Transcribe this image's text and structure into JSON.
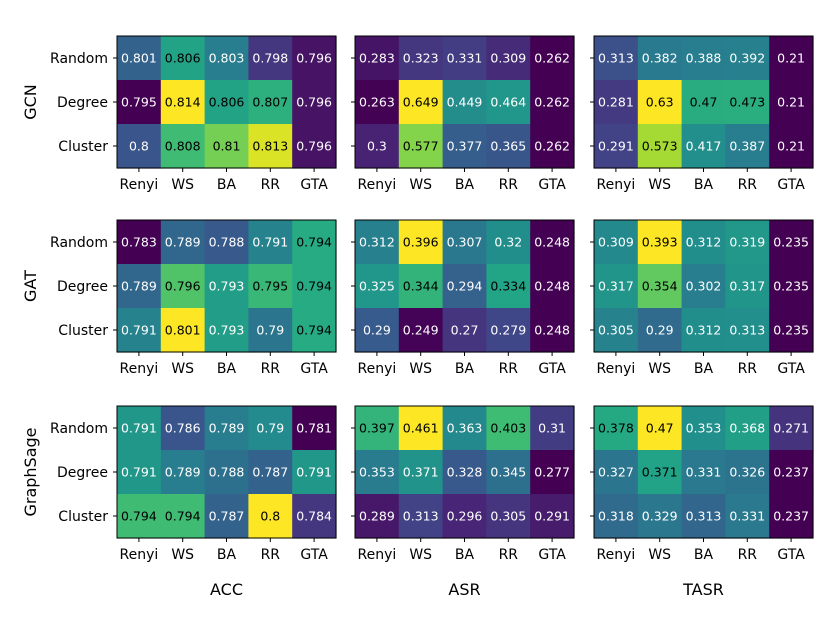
{
  "chart_data": {
    "type": "heatmap",
    "colormap": "viridis",
    "row_groups": [
      "GCN",
      "GAT",
      "GraphSage"
    ],
    "col_metrics": [
      "ACC",
      "ASR",
      "TASR"
    ],
    "y_categories": [
      "Random",
      "Degree",
      "Cluster"
    ],
    "x_categories": [
      "Renyi",
      "WS",
      "BA",
      "RR",
      "GTA"
    ],
    "panels": [
      {
        "model": "GCN",
        "metric": "ACC",
        "values": [
          [
            0.801,
            0.806,
            0.803,
            0.798,
            0.796
          ],
          [
            0.795,
            0.814,
            0.806,
            0.807,
            0.796
          ],
          [
            0.8,
            0.808,
            0.81,
            0.813,
            0.796
          ]
        ],
        "labels": [
          [
            "0.801",
            "0.806",
            "0.803",
            "0.798",
            "0.796"
          ],
          [
            "0.795",
            "0.814",
            "0.806",
            "0.807",
            "0.796"
          ],
          [
            "0.8",
            "0.808",
            "0.81",
            "0.813",
            "0.796"
          ]
        ]
      },
      {
        "model": "GCN",
        "metric": "ASR",
        "values": [
          [
            0.283,
            0.323,
            0.331,
            0.309,
            0.262
          ],
          [
            0.263,
            0.649,
            0.449,
            0.464,
            0.262
          ],
          [
            0.3,
            0.577,
            0.377,
            0.365,
            0.262
          ]
        ],
        "labels": [
          [
            "0.283",
            "0.323",
            "0.331",
            "0.309",
            "0.262"
          ],
          [
            "0.263",
            "0.649",
            "0.449",
            "0.464",
            "0.262"
          ],
          [
            "0.3",
            "0.577",
            "0.377",
            "0.365",
            "0.262"
          ]
        ]
      },
      {
        "model": "GCN",
        "metric": "TASR",
        "values": [
          [
            0.313,
            0.382,
            0.388,
            0.392,
            0.21
          ],
          [
            0.281,
            0.63,
            0.47,
            0.473,
            0.21
          ],
          [
            0.291,
            0.573,
            0.417,
            0.387,
            0.21
          ]
        ],
        "labels": [
          [
            "0.313",
            "0.382",
            "0.388",
            "0.392",
            "0.21"
          ],
          [
            "0.281",
            "0.63",
            "0.47",
            "0.473",
            "0.21"
          ],
          [
            "0.291",
            "0.573",
            "0.417",
            "0.387",
            "0.21"
          ]
        ]
      },
      {
        "model": "GAT",
        "metric": "ACC",
        "values": [
          [
            0.783,
            0.789,
            0.788,
            0.791,
            0.794
          ],
          [
            0.789,
            0.796,
            0.793,
            0.795,
            0.794
          ],
          [
            0.791,
            0.801,
            0.793,
            0.79,
            0.794
          ]
        ],
        "labels": [
          [
            "0.783",
            "0.789",
            "0.788",
            "0.791",
            "0.794"
          ],
          [
            "0.789",
            "0.796",
            "0.793",
            "0.795",
            "0.794"
          ],
          [
            "0.791",
            "0.801",
            "0.793",
            "0.79",
            "0.794"
          ]
        ]
      },
      {
        "model": "GAT",
        "metric": "ASR",
        "values": [
          [
            0.312,
            0.396,
            0.307,
            0.32,
            0.248
          ],
          [
            0.325,
            0.344,
            0.294,
            0.334,
            0.248
          ],
          [
            0.29,
            0.249,
            0.27,
            0.279,
            0.248
          ]
        ],
        "labels": [
          [
            "0.312",
            "0.396",
            "0.307",
            "0.32",
            "0.248"
          ],
          [
            "0.325",
            "0.344",
            "0.294",
            "0.334",
            "0.248"
          ],
          [
            "0.29",
            "0.249",
            "0.27",
            "0.279",
            "0.248"
          ]
        ]
      },
      {
        "model": "GAT",
        "metric": "TASR",
        "values": [
          [
            0.309,
            0.393,
            0.312,
            0.319,
            0.235
          ],
          [
            0.317,
            0.354,
            0.302,
            0.317,
            0.235
          ],
          [
            0.305,
            0.29,
            0.312,
            0.313,
            0.235
          ]
        ],
        "labels": [
          [
            "0.309",
            "0.393",
            "0.312",
            "0.319",
            "0.235"
          ],
          [
            "0.317",
            "0.354",
            "0.302",
            "0.317",
            "0.235"
          ],
          [
            "0.305",
            "0.29",
            "0.312",
            "0.313",
            "0.235"
          ]
        ]
      },
      {
        "model": "GraphSage",
        "metric": "ACC",
        "values": [
          [
            0.791,
            0.786,
            0.789,
            0.79,
            0.781
          ],
          [
            0.791,
            0.789,
            0.788,
            0.787,
            0.791
          ],
          [
            0.794,
            0.794,
            0.787,
            0.8,
            0.784
          ]
        ],
        "labels": [
          [
            "0.791",
            "0.786",
            "0.789",
            "0.79",
            "0.781"
          ],
          [
            "0.791",
            "0.789",
            "0.788",
            "0.787",
            "0.791"
          ],
          [
            "0.794",
            "0.794",
            "0.787",
            "0.8",
            "0.784"
          ]
        ]
      },
      {
        "model": "GraphSage",
        "metric": "ASR",
        "values": [
          [
            0.397,
            0.461,
            0.363,
            0.403,
            0.31
          ],
          [
            0.353,
            0.371,
            0.328,
            0.345,
            0.277
          ],
          [
            0.289,
            0.313,
            0.296,
            0.305,
            0.291
          ]
        ],
        "labels": [
          [
            "0.397",
            "0.461",
            "0.363",
            "0.403",
            "0.31"
          ],
          [
            "0.353",
            "0.371",
            "0.328",
            "0.345",
            "0.277"
          ],
          [
            "0.289",
            "0.313",
            "0.296",
            "0.305",
            "0.291"
          ]
        ]
      },
      {
        "model": "GraphSage",
        "metric": "TASR",
        "values": [
          [
            0.378,
            0.47,
            0.353,
            0.368,
            0.271
          ],
          [
            0.327,
            0.371,
            0.331,
            0.326,
            0.237
          ],
          [
            0.318,
            0.329,
            0.313,
            0.331,
            0.237
          ]
        ],
        "labels": [
          [
            "0.378",
            "0.47",
            "0.353",
            "0.368",
            "0.271"
          ],
          [
            "0.327",
            "0.371",
            "0.331",
            "0.326",
            "0.237"
          ],
          [
            "0.318",
            "0.329",
            "0.313",
            "0.331",
            "0.237"
          ]
        ]
      }
    ]
  }
}
